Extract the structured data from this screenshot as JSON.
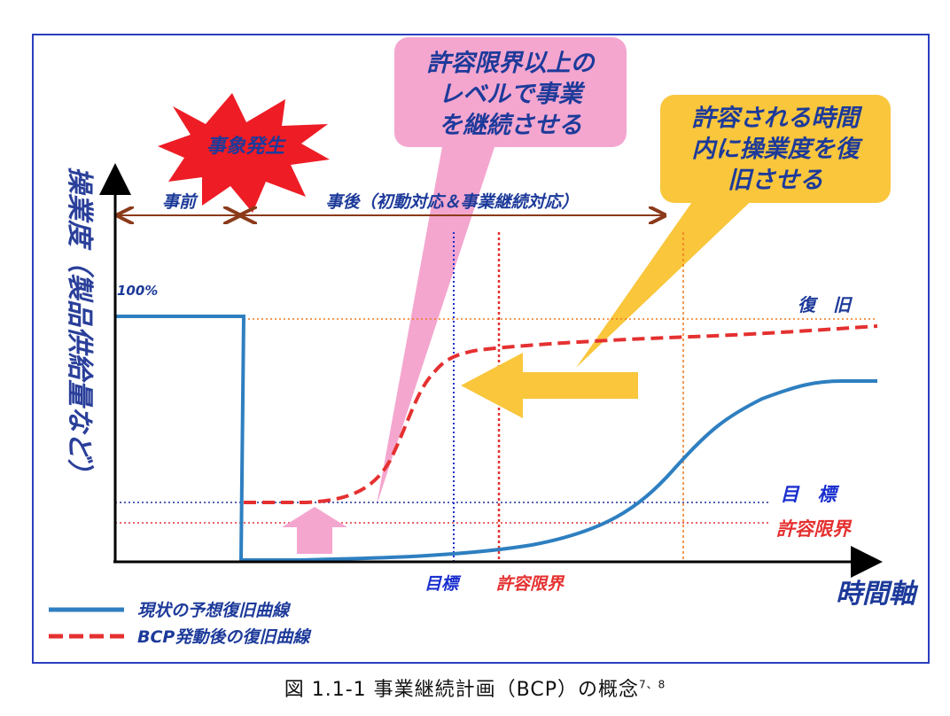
{
  "callouts": {
    "pink": [
      "許容限界以上の",
      "レベルで事業",
      "を継続させる"
    ],
    "yellow": [
      "許容される時間",
      "内に操業度を復",
      "旧させる"
    ]
  },
  "event_label": "事象発生",
  "y_axis_label": "操業度（製品供給量など）",
  "x_axis_label": "時間軸",
  "phases": {
    "before": "事前",
    "after": "事後（初動対応＆事業継続対応）"
  },
  "level_100": "100%",
  "line_labels": {
    "recovery": "復　旧",
    "target": "目　標",
    "limit": "許容限界"
  },
  "x_markers": {
    "target": "目標",
    "limit": "許容限界"
  },
  "legend": {
    "current": "現状の予想復旧曲線",
    "bcp": "BCP発動後の復旧曲線"
  },
  "caption": {
    "text": "図 1.1-1 事業継続計画（BCP）の概念",
    "sup": "7、8"
  },
  "colors": {
    "current_curve": "#2e7fc0",
    "bcp_curve": "#e53030",
    "pink_callout": "#f4a6cf",
    "yellow_callout": "#f9c63c",
    "frame": "#2b3fbf",
    "axis_label": "#2a3f9a",
    "phase_arrow": "#8b3a1a"
  }
}
